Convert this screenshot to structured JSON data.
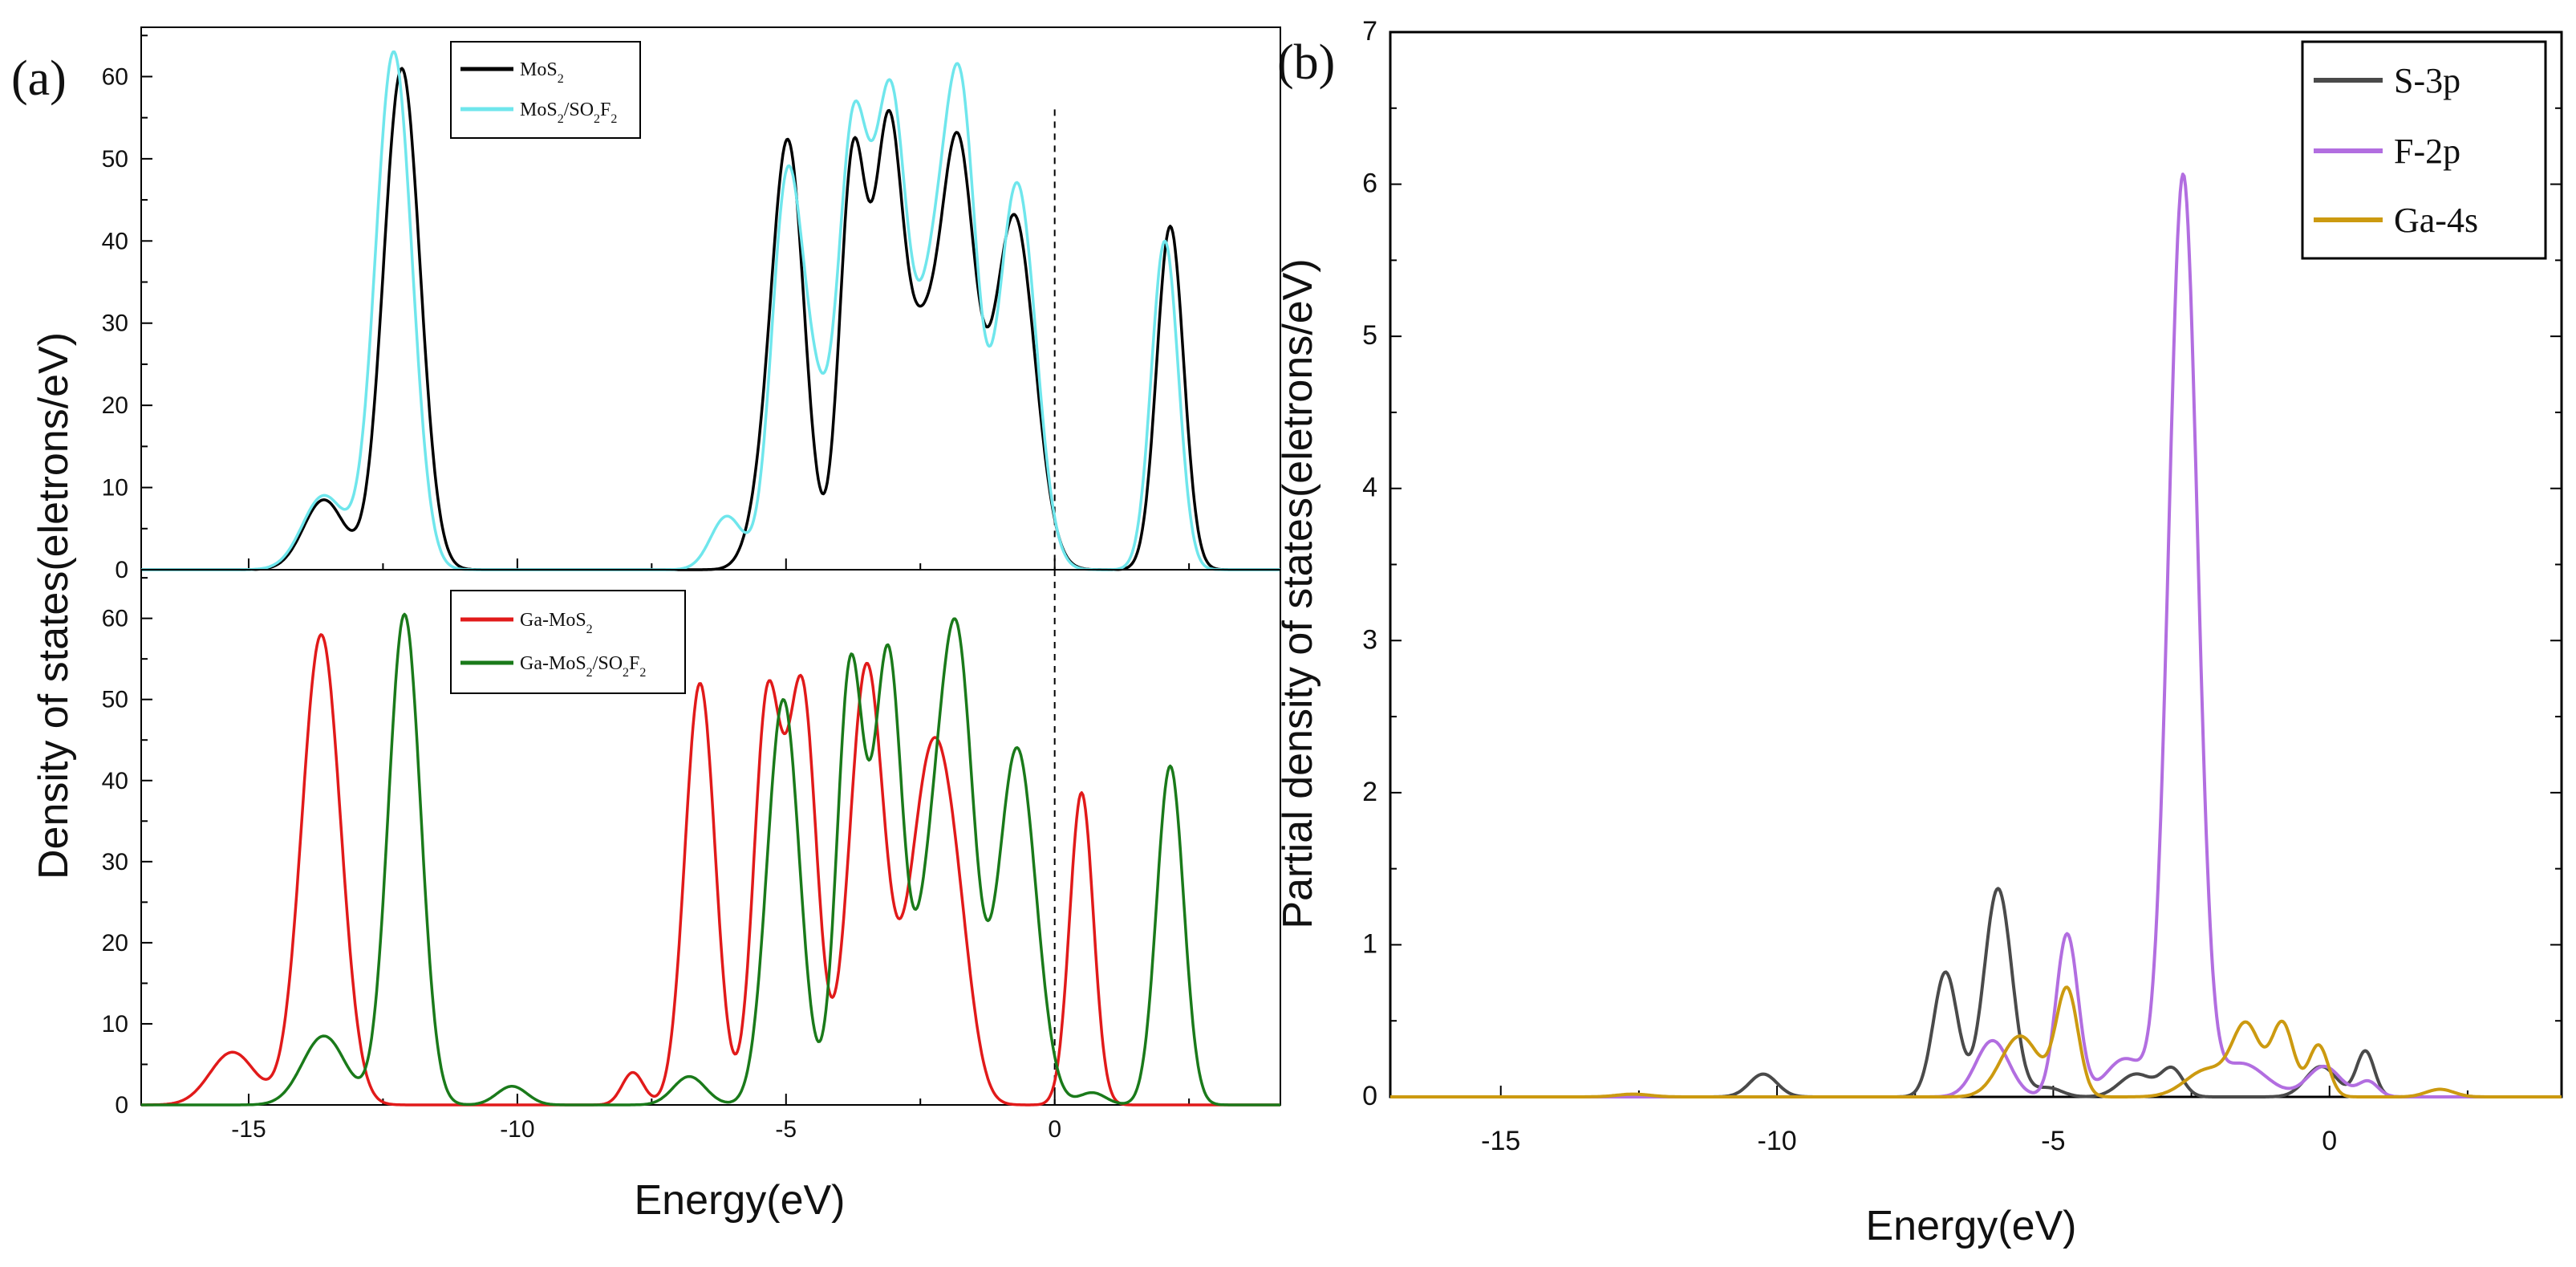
{
  "figure": {
    "panel_a_label": "(a)",
    "panel_b_label": "(b)",
    "panel_a_ylabel": "Density of states(eletrons/eV)",
    "panel_a_xlabel": "Energy(eV)",
    "panel_b_ylabel": "Partial density of states(eletrons/eV)",
    "panel_b_xlabel": "Energy(eV)",
    "top_legend": [
      {
        "label": "MoS",
        "sub": "2",
        "tail": ""
      },
      {
        "label": "MoS",
        "sub": "2",
        "tail": "/SO",
        "sub2": "2",
        "tail2": "F",
        "sub3": "2"
      }
    ],
    "bottom_legend": [
      {
        "label": "Ga-MoS",
        "sub": "2"
      },
      {
        "label": "Ga-MoS",
        "sub": "2",
        "tail": "/SO",
        "sub2": "2",
        "tail2": "F",
        "sub3": "2"
      }
    ],
    "right_legend": [
      "S-3p",
      "F-2p",
      "Ga-4s"
    ]
  },
  "chart_data": [
    {
      "id": "a-top",
      "type": "line",
      "title": "",
      "xlabel": "",
      "ylabel": "Density of states(eletrons/eV)",
      "xlim": [
        -17,
        4.2
      ],
      "ylim": [
        0,
        66
      ],
      "xticks": [
        -15,
        -10,
        -5,
        0
      ],
      "yticks": [
        0,
        10,
        20,
        30,
        40,
        50,
        60
      ],
      "fermi_level": 0,
      "series": [
        {
          "name": "MoS2",
          "color": "#000000",
          "peaks": [
            {
              "mu": -13.6,
              "amp": 8.5,
              "sigma": 0.38
            },
            {
              "mu": -12.15,
              "amp": 61,
              "sigma": 0.34
            },
            {
              "mu": -5.4,
              "amp": 7,
              "sigma": 0.3
            },
            {
              "mu": -4.95,
              "amp": 50,
              "sigma": 0.3
            },
            {
              "mu": -3.75,
              "amp": 50,
              "sigma": 0.25
            },
            {
              "mu": -3.1,
              "amp": 50,
              "sigma": 0.26
            },
            {
              "mu": -2.5,
              "amp": 24,
              "sigma": 0.32
            },
            {
              "mu": -1.8,
              "amp": 50,
              "sigma": 0.32
            },
            {
              "mu": -0.75,
              "amp": 43,
              "sigma": 0.38
            },
            {
              "mu": 2.15,
              "amp": 41.8,
              "sigma": 0.25
            }
          ]
        },
        {
          "name": "MoS2/SO2F2",
          "color": "#6fe6ec",
          "peaks": [
            {
              "mu": -13.6,
              "amp": 9,
              "sigma": 0.4
            },
            {
              "mu": -12.3,
              "amp": 63,
              "sigma": 0.34
            },
            {
              "mu": -6.1,
              "amp": 6.5,
              "sigma": 0.3
            },
            {
              "mu": -5.0,
              "amp": 44,
              "sigma": 0.28
            },
            {
              "mu": -4.5,
              "amp": 18,
              "sigma": 0.3
            },
            {
              "mu": -3.75,
              "amp": 52,
              "sigma": 0.28
            },
            {
              "mu": -3.05,
              "amp": 56,
              "sigma": 0.3
            },
            {
              "mu": -2.3,
              "amp": 28,
              "sigma": 0.3
            },
            {
              "mu": -1.75,
              "amp": 55,
              "sigma": 0.3
            },
            {
              "mu": -0.7,
              "amp": 47,
              "sigma": 0.35
            },
            {
              "mu": 2.05,
              "amp": 40,
              "sigma": 0.25
            }
          ]
        }
      ]
    },
    {
      "id": "a-bottom",
      "type": "line",
      "title": "",
      "xlabel": "Energy(eV)",
      "ylabel": "Density of states(eletrons/eV)",
      "xlim": [
        -17,
        4.2
      ],
      "ylim": [
        0,
        66
      ],
      "xticks": [
        -15,
        -10,
        -5,
        0
      ],
      "yticks": [
        0,
        10,
        20,
        30,
        40,
        50,
        60
      ],
      "fermi_level": 0,
      "series": [
        {
          "name": "Ga-MoS2",
          "color": "#e11a1a",
          "peaks": [
            {
              "mu": -15.3,
              "amp": 6.5,
              "sigma": 0.42
            },
            {
              "mu": -13.65,
              "amp": 58,
              "sigma": 0.36
            },
            {
              "mu": -7.85,
              "amp": 4,
              "sigma": 0.2
            },
            {
              "mu": -6.6,
              "amp": 52,
              "sigma": 0.28
            },
            {
              "mu": -5.35,
              "amp": 49,
              "sigma": 0.25
            },
            {
              "mu": -4.7,
              "amp": 51,
              "sigma": 0.27
            },
            {
              "mu": -3.5,
              "amp": 54,
              "sigma": 0.32
            },
            {
              "mu": -2.3,
              "amp": 42,
              "sigma": 0.4
            },
            {
              "mu": -1.8,
              "amp": 11,
              "sigma": 0.3
            },
            {
              "mu": 0.5,
              "amp": 38.5,
              "sigma": 0.22
            }
          ]
        },
        {
          "name": "Ga-MoS2/SO2F2",
          "color": "#1a7a1a",
          "peaks": [
            {
              "mu": -13.6,
              "amp": 8.5,
              "sigma": 0.4
            },
            {
              "mu": -12.1,
              "amp": 60.5,
              "sigma": 0.3
            },
            {
              "mu": -10.1,
              "amp": 2.3,
              "sigma": 0.28
            },
            {
              "mu": -6.8,
              "amp": 3.5,
              "sigma": 0.3
            },
            {
              "mu": -5.05,
              "amp": 50,
              "sigma": 0.3
            },
            {
              "mu": -3.8,
              "amp": 54,
              "sigma": 0.25
            },
            {
              "mu": -3.1,
              "amp": 55,
              "sigma": 0.26
            },
            {
              "mu": -2.3,
              "amp": 23,
              "sigma": 0.3
            },
            {
              "mu": -1.8,
              "amp": 53,
              "sigma": 0.3
            },
            {
              "mu": -0.7,
              "amp": 44,
              "sigma": 0.35
            },
            {
              "mu": 0.7,
              "amp": 1.5,
              "sigma": 0.25
            },
            {
              "mu": 2.15,
              "amp": 41.8,
              "sigma": 0.25
            }
          ]
        }
      ]
    },
    {
      "id": "b",
      "type": "line",
      "title": "",
      "xlabel": "Energy(eV)",
      "ylabel": "Partial density of states(eletrons/eV)",
      "xlim": [
        -17,
        4.2
      ],
      "ylim": [
        0,
        7
      ],
      "xticks": [
        -15,
        -10,
        -5,
        0
      ],
      "yticks": [
        0,
        1,
        2,
        3,
        4,
        5,
        6,
        7
      ],
      "series": [
        {
          "name": "S-3p",
          "color": "#4a4a4a",
          "peaks": [
            {
              "mu": -10.25,
              "amp": 0.15,
              "sigma": 0.25
            },
            {
              "mu": -6.95,
              "amp": 0.82,
              "sigma": 0.22
            },
            {
              "mu": -6.0,
              "amp": 1.37,
              "sigma": 0.25
            },
            {
              "mu": -5.1,
              "amp": 0.06,
              "sigma": 0.25
            },
            {
              "mu": -3.5,
              "amp": 0.15,
              "sigma": 0.3
            },
            {
              "mu": -2.85,
              "amp": 0.18,
              "sigma": 0.2
            },
            {
              "mu": -0.15,
              "amp": 0.2,
              "sigma": 0.28
            },
            {
              "mu": 0.65,
              "amp": 0.3,
              "sigma": 0.16
            }
          ]
        },
        {
          "name": "F-2p",
          "color": "#b26ee0",
          "peaks": [
            {
              "mu": -6.1,
              "amp": 0.37,
              "sigma": 0.3
            },
            {
              "mu": -4.75,
              "amp": 1.07,
              "sigma": 0.2
            },
            {
              "mu": -3.7,
              "amp": 0.25,
              "sigma": 0.35
            },
            {
              "mu": -2.65,
              "amp": 6.05,
              "sigma": 0.26
            },
            {
              "mu": -1.6,
              "amp": 0.22,
              "sigma": 0.45
            },
            {
              "mu": -0.1,
              "amp": 0.2,
              "sigma": 0.3
            },
            {
              "mu": 0.7,
              "amp": 0.1,
              "sigma": 0.18
            }
          ]
        },
        {
          "name": "Ga-4s",
          "color": "#cc9a10",
          "peaks": [
            {
              "mu": -12.6,
              "amp": 0.018,
              "sigma": 0.3
            },
            {
              "mu": -5.6,
              "amp": 0.4,
              "sigma": 0.35
            },
            {
              "mu": -4.75,
              "amp": 0.7,
              "sigma": 0.2
            },
            {
              "mu": -2.2,
              "amp": 0.18,
              "sigma": 0.4
            },
            {
              "mu": -1.5,
              "amp": 0.45,
              "sigma": 0.25
            },
            {
              "mu": -0.85,
              "amp": 0.48,
              "sigma": 0.2
            },
            {
              "mu": -0.2,
              "amp": 0.34,
              "sigma": 0.18
            },
            {
              "mu": 2.0,
              "amp": 0.05,
              "sigma": 0.25
            }
          ]
        }
      ]
    }
  ]
}
